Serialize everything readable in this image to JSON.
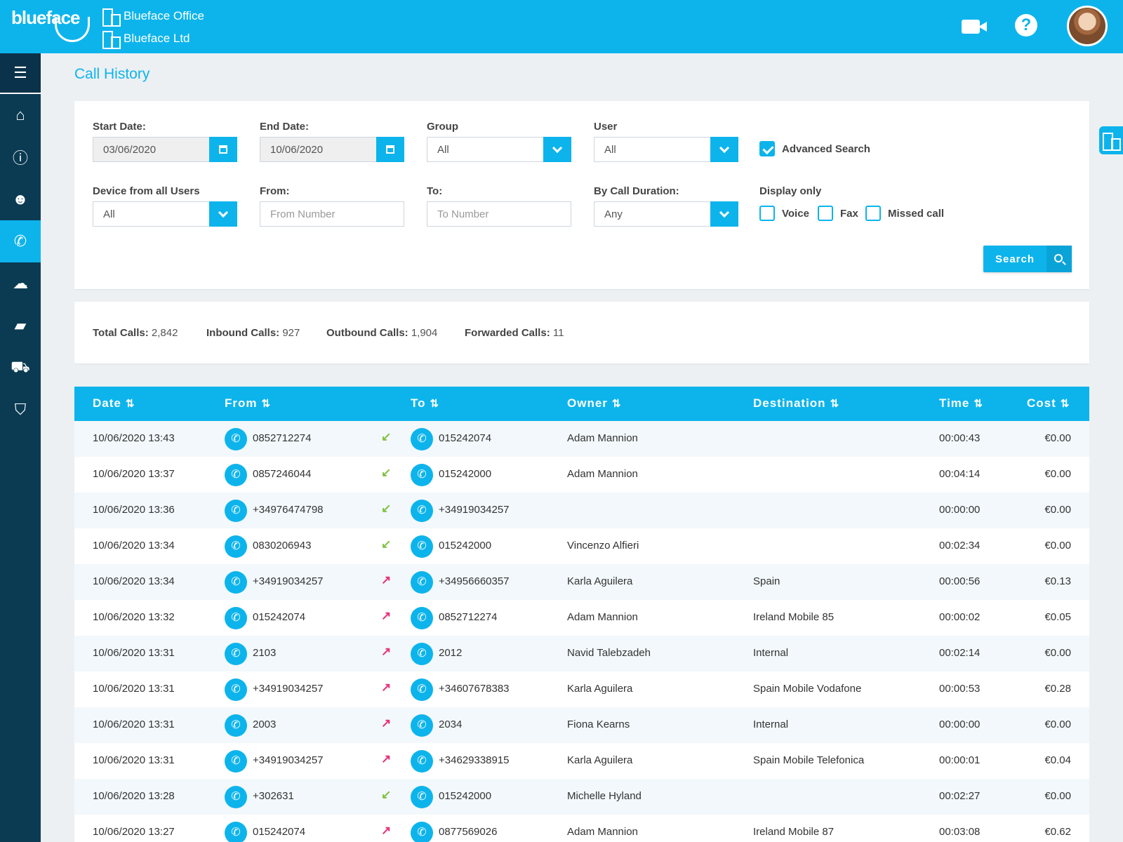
{
  "header": {
    "logo": "blueface",
    "org_primary": "Blueface Office",
    "org_secondary": "Blueface Ltd",
    "icons": [
      "video-icon",
      "help-icon",
      "avatar"
    ]
  },
  "sidebar": {
    "items": [
      {
        "name": "menu",
        "icon": "≡"
      },
      {
        "name": "home",
        "icon": "⌂"
      },
      {
        "name": "info",
        "icon": "ⓘ"
      },
      {
        "name": "users",
        "icon": "👥"
      },
      {
        "name": "calls",
        "icon": "✆",
        "active": true
      },
      {
        "name": "cloud",
        "icon": "☁"
      },
      {
        "name": "files",
        "icon": "▬"
      },
      {
        "name": "cart",
        "icon": "🛒"
      },
      {
        "name": "security",
        "icon": "⛉"
      }
    ]
  },
  "page": {
    "title": "Call History"
  },
  "filters": {
    "start_date_label": "Start Date:",
    "start_date": "03/06/2020",
    "end_date_label": "End Date:",
    "end_date": "10/06/2020",
    "group_label": "Group",
    "group_value": "All",
    "user_label": "User",
    "user_value": "All",
    "advanced_search_label": "Advanced Search",
    "advanced_search_checked": true,
    "device_label": "Device from all Users",
    "device_value": "All",
    "from_label": "From:",
    "from_placeholder": "From Number",
    "to_label": "To:",
    "to_placeholder": "To Number",
    "duration_label": "By Call Duration:",
    "duration_value": "Any",
    "display_only_label": "Display only",
    "voice_label": "Voice",
    "fax_label": "Fax",
    "missed_label": "Missed call",
    "search_button": "Search"
  },
  "stats": {
    "total_label": "Total Calls:",
    "total": "2,842",
    "inbound_label": "Inbound Calls:",
    "inbound": "927",
    "outbound_label": "Outbound Calls:",
    "outbound": "1,904",
    "forwarded_label": "Forwarded Calls:",
    "forwarded": "11"
  },
  "table": {
    "columns": [
      "Date",
      "From",
      "To",
      "Owner",
      "Destination",
      "Time",
      "Cost"
    ],
    "sort_icon": "⇅",
    "rows": [
      {
        "date": "10/06/2020 13:43",
        "from": "0852712274",
        "dir": "in",
        "to": "015242074",
        "owner": "Adam Mannion",
        "destination": "",
        "time": "00:00:43",
        "cost": "€0.00"
      },
      {
        "date": "10/06/2020 13:37",
        "from": "0857246044",
        "dir": "in",
        "to": "015242000",
        "owner": "Adam Mannion",
        "destination": "",
        "time": "00:04:14",
        "cost": "€0.00"
      },
      {
        "date": "10/06/2020 13:36",
        "from": "+34976474798",
        "dir": "in",
        "to": "+34919034257",
        "owner": "",
        "destination": "",
        "time": "00:00:00",
        "cost": "€0.00"
      },
      {
        "date": "10/06/2020 13:34",
        "from": "0830206943",
        "dir": "in",
        "to": "015242000",
        "owner": "Vincenzo Alfieri",
        "destination": "",
        "time": "00:02:34",
        "cost": "€0.00"
      },
      {
        "date": "10/06/2020 13:34",
        "from": "+34919034257",
        "dir": "out",
        "to": "+34956660357",
        "owner": "Karla Aguilera",
        "destination": "Spain",
        "time": "00:00:56",
        "cost": "€0.13"
      },
      {
        "date": "10/06/2020 13:32",
        "from": "015242074",
        "dir": "out",
        "to": "0852712274",
        "owner": "Adam Mannion",
        "destination": "Ireland Mobile 85",
        "time": "00:00:02",
        "cost": "€0.05"
      },
      {
        "date": "10/06/2020 13:31",
        "from": "2103",
        "dir": "out",
        "to": "2012",
        "owner": "Navid Talebzadeh",
        "destination": "Internal",
        "time": "00:02:14",
        "cost": "€0.00"
      },
      {
        "date": "10/06/2020 13:31",
        "from": "+34919034257",
        "dir": "out",
        "to": "+34607678383",
        "owner": "Karla Aguilera",
        "destination": "Spain Mobile Vodafone",
        "time": "00:00:53",
        "cost": "€0.28"
      },
      {
        "date": "10/06/2020 13:31",
        "from": "2003",
        "dir": "out",
        "to": "2034",
        "owner": "Fiona Kearns",
        "destination": "Internal",
        "time": "00:00:00",
        "cost": "€0.00"
      },
      {
        "date": "10/06/2020 13:31",
        "from": "+34919034257",
        "dir": "out",
        "to": "+34629338915",
        "owner": "Karla Aguilera",
        "destination": "Spain Mobile Telefonica",
        "time": "00:00:01",
        "cost": "€0.04"
      },
      {
        "date": "10/06/2020 13:28",
        "from": "+302631",
        "dir": "in",
        "to": "015242000",
        "owner": "Michelle Hyland",
        "destination": "",
        "time": "00:02:27",
        "cost": "€0.00"
      },
      {
        "date": "10/06/2020 13:27",
        "from": "015242074",
        "dir": "out",
        "to": "0877569026",
        "owner": "Adam Mannion",
        "destination": "Ireland Mobile 87",
        "time": "00:03:08",
        "cost": "€0.62"
      }
    ]
  },
  "colors": {
    "accent": "#0db4ec",
    "sidebar": "#0b3b53",
    "inbound": "#7fc241",
    "outbound": "#e8317a"
  }
}
